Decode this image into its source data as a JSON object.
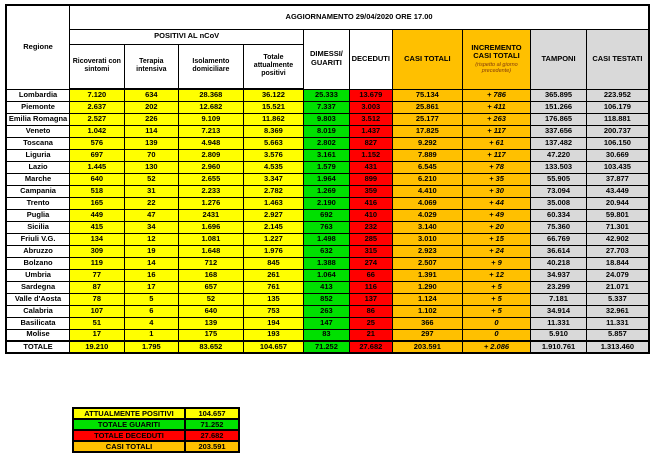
{
  "colors": {
    "yellow": "#FFFF00",
    "green": "#00E000",
    "red": "#FF0000",
    "orange": "#FFC000",
    "gray": "#D9D9D9",
    "note_text": "#843C0C",
    "border": "#000000"
  },
  "chart_data": {
    "type": "table",
    "title": "AGGIORNAMENTO 29/04/2020 ORE 17.00",
    "header": {
      "region": "Regione",
      "positivi_group": "POSITIVI AL nCoV",
      "ricoverati": "Ricoverati con sintomi",
      "terapia": "Terapia intensiva",
      "isolamento": "Isolamento domiciliare",
      "totale_positivi": "Totale attualmente positivi",
      "guariti": "DIMESSI/ GUARITI",
      "deceduti": "DECEDUTI",
      "casi_totali": "CASI TOTALI",
      "incremento": "INCREMENTO CASI TOTALI",
      "incremento_note": "(rispetto al giorno precedente)",
      "tamponi": "TAMPONI",
      "casi_testati": "CASI TESTATI"
    },
    "rows": [
      {
        "region": "Lombardia",
        "ricoverati": "7.120",
        "terapia": "634",
        "isolamento": "28.368",
        "totale_positivi": "36.122",
        "guariti": "25.333",
        "deceduti": "13.679",
        "casi_totali": "75.134",
        "incremento": "+ 786",
        "tamponi": "365.895",
        "casi_testati": "223.952"
      },
      {
        "region": "Piemonte",
        "ricoverati": "2.637",
        "terapia": "202",
        "isolamento": "12.682",
        "totale_positivi": "15.521",
        "guariti": "7.337",
        "deceduti": "3.003",
        "casi_totali": "25.861",
        "incremento": "+ 411",
        "tamponi": "151.266",
        "casi_testati": "106.179"
      },
      {
        "region": "Emilia Romagna",
        "ricoverati": "2.527",
        "terapia": "226",
        "isolamento": "9.109",
        "totale_positivi": "11.862",
        "guariti": "9.803",
        "deceduti": "3.512",
        "casi_totali": "25.177",
        "incremento": "+ 263",
        "tamponi": "176.865",
        "casi_testati": "118.881"
      },
      {
        "region": "Veneto",
        "ricoverati": "1.042",
        "terapia": "114",
        "isolamento": "7.213",
        "totale_positivi": "8.369",
        "guariti": "8.019",
        "deceduti": "1.437",
        "casi_totali": "17.825",
        "incremento": "+ 117",
        "tamponi": "337.656",
        "casi_testati": "200.737"
      },
      {
        "region": "Toscana",
        "ricoverati": "576",
        "terapia": "139",
        "isolamento": "4.948",
        "totale_positivi": "5.663",
        "guariti": "2.802",
        "deceduti": "827",
        "casi_totali": "9.292",
        "incremento": "+ 61",
        "tamponi": "137.482",
        "casi_testati": "106.150"
      },
      {
        "region": "Liguria",
        "ricoverati": "697",
        "terapia": "70",
        "isolamento": "2.809",
        "totale_positivi": "3.576",
        "guariti": "3.161",
        "deceduti": "1.152",
        "casi_totali": "7.889",
        "incremento": "+ 117",
        "tamponi": "47.220",
        "casi_testati": "30.669"
      },
      {
        "region": "Lazio",
        "ricoverati": "1.445",
        "terapia": "130",
        "isolamento": "2.960",
        "totale_positivi": "4.535",
        "guariti": "1.579",
        "deceduti": "431",
        "casi_totali": "6.545",
        "incremento": "+ 78",
        "tamponi": "133.503",
        "casi_testati": "103.435"
      },
      {
        "region": "Marche",
        "ricoverati": "640",
        "terapia": "52",
        "isolamento": "2.655",
        "totale_positivi": "3.347",
        "guariti": "1.964",
        "deceduti": "899",
        "casi_totali": "6.210",
        "incremento": "+ 35",
        "tamponi": "55.905",
        "casi_testati": "37.877"
      },
      {
        "region": "Campania",
        "ricoverati": "518",
        "terapia": "31",
        "isolamento": "2.233",
        "totale_positivi": "2.782",
        "guariti": "1.269",
        "deceduti": "359",
        "casi_totali": "4.410",
        "incremento": "+ 30",
        "tamponi": "73.094",
        "casi_testati": "43.449"
      },
      {
        "region": "Trento",
        "ricoverati": "165",
        "terapia": "22",
        "isolamento": "1.276",
        "totale_positivi": "1.463",
        "guariti": "2.190",
        "deceduti": "416",
        "casi_totali": "4.069",
        "incremento": "+ 44",
        "tamponi": "35.008",
        "casi_testati": "20.944"
      },
      {
        "region": "Puglia",
        "ricoverati": "449",
        "terapia": "47",
        "isolamento": "2431",
        "totale_positivi": "2.927",
        "guariti": "692",
        "deceduti": "410",
        "casi_totali": "4.029",
        "incremento": "+ 49",
        "tamponi": "60.334",
        "casi_testati": "59.801"
      },
      {
        "region": "Sicilia",
        "ricoverati": "415",
        "terapia": "34",
        "isolamento": "1.696",
        "totale_positivi": "2.145",
        "guariti": "763",
        "deceduti": "232",
        "casi_totali": "3.140",
        "incremento": "+ 20",
        "tamponi": "75.360",
        "casi_testati": "71.301"
      },
      {
        "region": "Friuli V.G.",
        "ricoverati": "134",
        "terapia": "12",
        "isolamento": "1.081",
        "totale_positivi": "1.227",
        "guariti": "1.498",
        "deceduti": "285",
        "casi_totali": "3.010",
        "incremento": "+ 15",
        "tamponi": "66.769",
        "casi_testati": "42.902"
      },
      {
        "region": "Abruzzo",
        "ricoverati": "309",
        "terapia": "19",
        "isolamento": "1.648",
        "totale_positivi": "1.976",
        "guariti": "632",
        "deceduti": "315",
        "casi_totali": "2.923",
        "incremento": "+ 24",
        "tamponi": "36.614",
        "casi_testati": "27.703"
      },
      {
        "region": "Bolzano",
        "ricoverati": "119",
        "terapia": "14",
        "isolamento": "712",
        "totale_positivi": "845",
        "guariti": "1.388",
        "deceduti": "274",
        "casi_totali": "2.507",
        "incremento": "+ 9",
        "tamponi": "40.218",
        "casi_testati": "18.844"
      },
      {
        "region": "Umbria",
        "ricoverati": "77",
        "terapia": "16",
        "isolamento": "168",
        "totale_positivi": "261",
        "guariti": "1.064",
        "deceduti": "66",
        "casi_totali": "1.391",
        "incremento": "+ 12",
        "tamponi": "34.937",
        "casi_testati": "24.079"
      },
      {
        "region": "Sardegna",
        "ricoverati": "87",
        "terapia": "17",
        "isolamento": "657",
        "totale_positivi": "761",
        "guariti": "413",
        "deceduti": "116",
        "casi_totali": "1.290",
        "incremento": "+ 5",
        "tamponi": "23.299",
        "casi_testati": "21.071"
      },
      {
        "region": "Valle d'Aosta",
        "ricoverati": "78",
        "terapia": "5",
        "isolamento": "52",
        "totale_positivi": "135",
        "guariti": "852",
        "deceduti": "137",
        "casi_totali": "1.124",
        "incremento": "+ 5",
        "tamponi": "7.181",
        "casi_testati": "5.337"
      },
      {
        "region": "Calabria",
        "ricoverati": "107",
        "terapia": "6",
        "isolamento": "640",
        "totale_positivi": "753",
        "guariti": "263",
        "deceduti": "86",
        "casi_totali": "1.102",
        "incremento": "+ 5",
        "tamponi": "34.914",
        "casi_testati": "32.961"
      },
      {
        "region": "Basilicata",
        "ricoverati": "51",
        "terapia": "4",
        "isolamento": "139",
        "totale_positivi": "194",
        "guariti": "147",
        "deceduti": "25",
        "casi_totali": "366",
        "incremento": "0",
        "tamponi": "11.331",
        "casi_testati": "11.331"
      },
      {
        "region": "Molise",
        "ricoverati": "17",
        "terapia": "1",
        "isolamento": "175",
        "totale_positivi": "193",
        "guariti": "83",
        "deceduti": "21",
        "casi_totali": "297",
        "incremento": "0",
        "tamponi": "5.910",
        "casi_testati": "5.857"
      },
      {
        "region": "TOTALE",
        "ricoverati": "19.210",
        "terapia": "1.795",
        "isolamento": "83.652",
        "totale_positivi": "104.657",
        "guariti": "71.252",
        "deceduti": "27.682",
        "casi_totali": "203.591",
        "incremento": "+ 2.086",
        "tamponi": "1.910.761",
        "casi_testati": "1.313.460"
      }
    ],
    "summary": [
      {
        "label": "ATTUALMENTE POSITIVI",
        "value": "104.657",
        "color": "yellow"
      },
      {
        "label": "TOTALE GUARITI",
        "value": "71.252",
        "color": "green"
      },
      {
        "label": "TOTALE DECEDUTI",
        "value": "27.682",
        "color": "red"
      },
      {
        "label": "CASI TOTALI",
        "value": "203.591",
        "color": "orange"
      }
    ]
  }
}
